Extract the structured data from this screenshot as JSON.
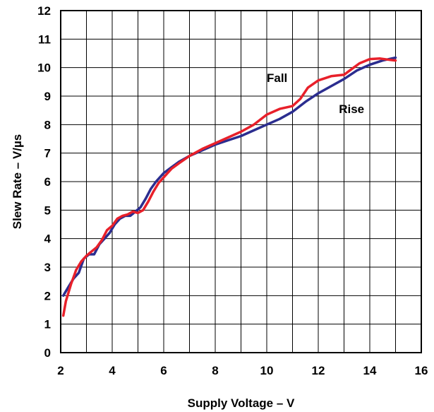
{
  "chart_data": {
    "type": "line",
    "title": "",
    "xlabel": "Supply Voltage – V",
    "ylabel": "Slew Rate – V/µs",
    "xlim": [
      2,
      16
    ],
    "ylim": [
      0,
      12
    ],
    "x_ticks": [
      2,
      4,
      6,
      8,
      10,
      12,
      14,
      16
    ],
    "y_ticks": [
      0,
      1,
      2,
      3,
      4,
      5,
      6,
      7,
      8,
      9,
      10,
      11,
      12
    ],
    "x_grid_step": 1,
    "y_grid_step": 1,
    "grid": true,
    "legend": "none",
    "series": [
      {
        "name": "Rise",
        "color": "#2b2d8f",
        "x": [
          2.1,
          2.3,
          2.5,
          2.7,
          2.9,
          3.1,
          3.3,
          3.5,
          3.7,
          3.9,
          4.1,
          4.3,
          4.5,
          4.7,
          4.9,
          5.1,
          5.3,
          5.5,
          5.7,
          6.0,
          6.3,
          6.6,
          7.0,
          7.5,
          8.0,
          8.5,
          9.0,
          9.5,
          10.0,
          10.5,
          11.0,
          11.5,
          12.0,
          12.5,
          13.0,
          13.5,
          14.0,
          14.5,
          15.0
        ],
        "y": [
          2.0,
          2.3,
          2.6,
          2.8,
          3.3,
          3.45,
          3.45,
          3.8,
          4.0,
          4.2,
          4.5,
          4.7,
          4.8,
          4.8,
          4.95,
          5.1,
          5.4,
          5.75,
          6.0,
          6.3,
          6.5,
          6.7,
          6.9,
          7.1,
          7.3,
          7.45,
          7.6,
          7.8,
          8.0,
          8.2,
          8.45,
          8.8,
          9.1,
          9.35,
          9.6,
          9.9,
          10.1,
          10.25,
          10.35
        ]
      },
      {
        "name": "Fall",
        "color": "#e8202a",
        "x": [
          2.1,
          2.2,
          2.4,
          2.6,
          2.8,
          3.0,
          3.2,
          3.4,
          3.6,
          3.8,
          4.0,
          4.2,
          4.4,
          4.6,
          4.8,
          5.0,
          5.2,
          5.4,
          5.6,
          5.8,
          6.0,
          6.3,
          6.6,
          7.0,
          7.5,
          8.0,
          8.5,
          9.0,
          9.5,
          10.0,
          10.5,
          11.0,
          11.3,
          11.6,
          12.0,
          12.5,
          13.0,
          13.3,
          13.6,
          14.0,
          14.4,
          14.8,
          15.0
        ],
        "y": [
          1.3,
          1.8,
          2.4,
          2.9,
          3.2,
          3.4,
          3.55,
          3.7,
          3.95,
          4.3,
          4.45,
          4.7,
          4.8,
          4.85,
          4.95,
          4.9,
          5.0,
          5.3,
          5.65,
          5.95,
          6.15,
          6.45,
          6.65,
          6.9,
          7.15,
          7.35,
          7.55,
          7.75,
          8.0,
          8.35,
          8.55,
          8.65,
          8.9,
          9.3,
          9.55,
          9.7,
          9.75,
          9.95,
          10.15,
          10.3,
          10.32,
          10.27,
          10.25
        ]
      }
    ],
    "annotations": [
      {
        "text": "Fall",
        "x": 10.0,
        "y": 9.5
      },
      {
        "text": "Rise",
        "x": 12.8,
        "y": 8.4
      }
    ]
  }
}
